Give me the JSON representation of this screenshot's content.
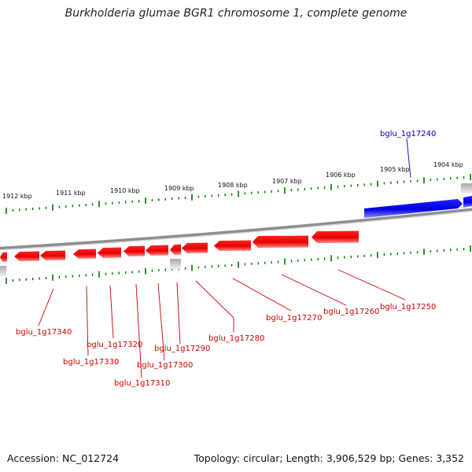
{
  "title": "Burkholderia glumae BGR1 chromosome 1, complete genome",
  "footer": {
    "accession": "Accession: NC_012724",
    "summary": "Topology: circular; Length: 3,906,529 bp; Genes: 3,352"
  },
  "kbp_labels": [
    "1912 kbp",
    "1911 kbp",
    "1910 kbp",
    "1909 kbp",
    "1908 kbp",
    "1907 kbp",
    "1906 kbp",
    "1905 kbp",
    "1904 kbp"
  ],
  "colors": {
    "forward_gene": "#0000ee",
    "reverse_gene": "#ee0000",
    "forward_label": "#0000aa",
    "reverse_label": "#cc0000",
    "tick": "#007700",
    "backbone": "#888888"
  },
  "genes_forward": [
    {
      "label": "bglu_1g17240"
    }
  ],
  "genes_reverse": [
    {
      "label": "bglu_1g17250"
    },
    {
      "label": "bglu_1g17260"
    },
    {
      "label": "bglu_1g17270"
    },
    {
      "label": "bglu_1g17280"
    },
    {
      "label": "bglu_1g17290"
    },
    {
      "label": "bglu_1g17300"
    },
    {
      "label": "bglu_1g17310"
    },
    {
      "label": "bglu_1g17320"
    },
    {
      "label": "bglu_1g17330"
    },
    {
      "label": "bglu_1g17340"
    }
  ]
}
